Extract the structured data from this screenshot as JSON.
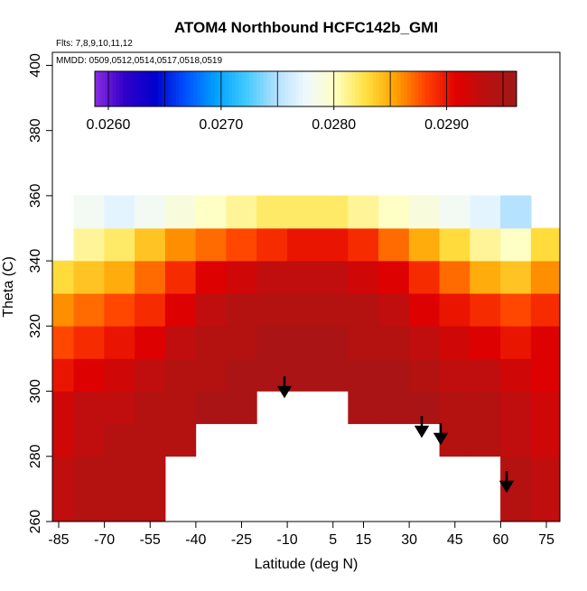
{
  "chart_data": {
    "type": "heatmap",
    "title": "ATOM4 Northbound HCFC142b_GMI",
    "subtitle": "Flts: 7,8,9,10,11,12",
    "annotation": "MMDD: 0509,0512,0514,0517,0518,0519",
    "x_label": "Latitude (deg N)",
    "y_label": "Theta (C)",
    "xlim": [
      -87.07,
      79.44
    ],
    "ylim": [
      260,
      404
    ],
    "xticks": [
      -85,
      -70,
      -55,
      -40,
      -25,
      -10,
      5,
      15,
      30,
      45,
      60,
      75
    ],
    "yticks": [
      260,
      280,
      300,
      320,
      340,
      360,
      380,
      400
    ],
    "clim": [
      0.02588,
      0.02962
    ],
    "cticks": [
      {
        "value": 0.026,
        "label": "0.0260"
      },
      {
        "value": 0.027,
        "label": "0.0270"
      },
      {
        "value": 0.028,
        "label": "0.0280"
      },
      {
        "value": 0.029,
        "label": "0.0290"
      }
    ],
    "colors": [
      "#8a2be2",
      "#3000c8",
      "#0000cd",
      "#0050ff",
      "#00a0ff",
      "#40c8ff",
      "#b0e0ff",
      "#f0f8ff",
      "#ffffc0",
      "#ffe040",
      "#ffa000",
      "#ff4000",
      "#e00000",
      "#b81010",
      "#a01818"
    ],
    "field": {
      "lat": [
        -85,
        -75,
        -65,
        -55,
        -45,
        -35,
        -25,
        -15,
        -5,
        5,
        15,
        25,
        35,
        45,
        55,
        65,
        75
      ],
      "theta": [
        265,
        275,
        285,
        295,
        305,
        315,
        325,
        335,
        345,
        355
      ],
      "values": [
        [
          0.0293,
          0.0294,
          0.0294,
          0.0294,
          null,
          null,
          null,
          null,
          null,
          null,
          null,
          null,
          null,
          null,
          null,
          0.0294,
          0.0293
        ],
        [
          0.0293,
          0.0294,
          0.0294,
          0.0294,
          null,
          null,
          null,
          null,
          null,
          null,
          null,
          null,
          null,
          null,
          null,
          0.0294,
          0.0293
        ],
        [
          0.0292,
          0.0293,
          0.0294,
          0.0294,
          0.0294,
          null,
          null,
          null,
          null,
          null,
          null,
          null,
          null,
          0.0294,
          0.0294,
          0.0293,
          0.0292
        ],
        [
          0.0292,
          0.0293,
          0.0293,
          0.0294,
          0.0294,
          0.0295,
          0.0295,
          null,
          null,
          null,
          0.0295,
          0.0295,
          0.0295,
          0.0294,
          0.0294,
          0.0293,
          0.0292
        ],
        [
          0.029,
          0.0291,
          0.0292,
          0.0293,
          0.0294,
          0.0294,
          0.0295,
          0.0295,
          0.0295,
          0.0295,
          0.0295,
          0.0295,
          0.0294,
          0.0293,
          0.0293,
          0.0292,
          0.0291
        ],
        [
          0.0288,
          0.0289,
          0.029,
          0.0291,
          0.0293,
          0.0294,
          0.0294,
          0.0295,
          0.0295,
          0.0295,
          0.0294,
          0.0294,
          0.0293,
          0.0292,
          0.0291,
          0.029,
          0.0291
        ],
        [
          0.0286,
          0.0287,
          0.0288,
          0.0289,
          0.0291,
          0.0293,
          0.0294,
          0.0294,
          0.0294,
          0.0294,
          0.0294,
          0.0293,
          0.0291,
          0.029,
          0.0289,
          0.0288,
          0.0289
        ],
        [
          0.0283,
          0.0284,
          0.0285,
          0.0287,
          0.0289,
          0.0291,
          0.0292,
          0.0293,
          0.0293,
          0.0293,
          0.0292,
          0.0291,
          0.0289,
          0.0287,
          0.0285,
          0.0284,
          0.0286
        ],
        [
          null,
          0.0281,
          0.0282,
          0.0284,
          0.0286,
          0.0287,
          0.0288,
          0.0289,
          0.029,
          0.029,
          0.0289,
          0.0287,
          0.0285,
          0.0283,
          0.0281,
          0.028,
          0.0283
        ],
        [
          null,
          0.0278,
          0.0277,
          0.0278,
          0.0279,
          0.028,
          0.0281,
          0.0282,
          0.0282,
          0.0282,
          0.0281,
          0.028,
          0.0279,
          0.0278,
          0.0277,
          0.0275,
          null
        ]
      ]
    }
  }
}
